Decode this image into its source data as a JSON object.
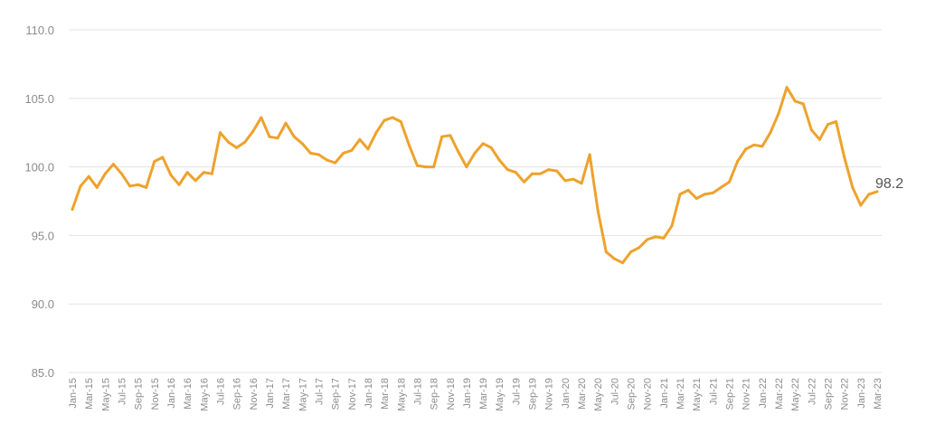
{
  "chart_data": {
    "type": "line",
    "title": "",
    "xlabel": "",
    "ylabel": "",
    "ylim": [
      85,
      110
    ],
    "yticks": [
      "85.0",
      "90.0",
      "95.0",
      "100.0",
      "105.0",
      "110.0"
    ],
    "grid": true,
    "legend": "none",
    "x": [
      "Jan-15",
      "Feb-15",
      "Mar-15",
      "Apr-15",
      "May-15",
      "Jun-15",
      "Jul-15",
      "Aug-15",
      "Sep-15",
      "Oct-15",
      "Nov-15",
      "Dec-15",
      "Jan-16",
      "Feb-16",
      "Mar-16",
      "Apr-16",
      "May-16",
      "Jun-16",
      "Jul-16",
      "Aug-16",
      "Sep-16",
      "Oct-16",
      "Nov-16",
      "Dec-16",
      "Jan-17",
      "Feb-17",
      "Mar-17",
      "Apr-17",
      "May-17",
      "Jun-17",
      "Jul-17",
      "Aug-17",
      "Sep-17",
      "Oct-17",
      "Nov-17",
      "Dec-17",
      "Jan-18",
      "Feb-18",
      "Mar-18",
      "Apr-18",
      "May-18",
      "Jun-18",
      "Jul-18",
      "Aug-18",
      "Sep-18",
      "Oct-18",
      "Nov-18",
      "Dec-18",
      "Jan-19",
      "Feb-19",
      "Mar-19",
      "Apr-19",
      "May-19",
      "Jun-19",
      "Jul-19",
      "Aug-19",
      "Sep-19",
      "Oct-19",
      "Nov-19",
      "Dec-19",
      "Jan-20",
      "Feb-20",
      "Mar-20",
      "Apr-20",
      "May-20",
      "Jun-20",
      "Jul-20",
      "Aug-20",
      "Sep-20",
      "Oct-20",
      "Nov-20",
      "Dec-20",
      "Jan-21",
      "Feb-21",
      "Mar-21",
      "Apr-21",
      "May-21",
      "Jun-21",
      "Jul-21",
      "Aug-21",
      "Sep-21",
      "Oct-21",
      "Nov-21",
      "Dec-21",
      "Jan-22",
      "Feb-22",
      "Mar-22",
      "Apr-22",
      "May-22",
      "Jun-22",
      "Jul-22",
      "Aug-22",
      "Sep-22",
      "Oct-22",
      "Nov-22",
      "Dec-22",
      "Jan-23",
      "Feb-23",
      "Mar-23"
    ],
    "series": [
      {
        "values": [
          96.9,
          98.6,
          99.3,
          98.5,
          99.5,
          100.2,
          99.5,
          98.6,
          98.7,
          98.5,
          100.4,
          100.7,
          99.4,
          98.7,
          99.6,
          99.0,
          99.6,
          99.5,
          102.5,
          101.8,
          101.4,
          101.8,
          102.6,
          103.6,
          102.2,
          102.1,
          103.2,
          102.2,
          101.7,
          101.0,
          100.9,
          100.5,
          100.3,
          101.0,
          101.2,
          102.0,
          101.3,
          102.5,
          103.4,
          103.6,
          103.3,
          101.6,
          100.1,
          100.0,
          100.0,
          102.2,
          102.3,
          101.1,
          100.0,
          101.0,
          101.7,
          101.4,
          100.5,
          99.8,
          99.6,
          98.9,
          99.5,
          99.5,
          99.8,
          99.7,
          99.0,
          99.1,
          98.8,
          100.9,
          96.8,
          93.8,
          93.3,
          93.0,
          93.8,
          94.1,
          94.7,
          94.9,
          94.8,
          95.7,
          98.0,
          98.3,
          97.7,
          98.0,
          98.1,
          98.5,
          98.9,
          100.4,
          101.3,
          101.6,
          101.5,
          102.5,
          103.9,
          105.8,
          104.8,
          104.6,
          102.7,
          102.0,
          103.1,
          103.3,
          100.7,
          98.5,
          97.2,
          98.0,
          98.2
        ],
        "color": "#EEA22C"
      }
    ],
    "xtick_labels": [
      "Jan-15",
      "Mar-15",
      "May-15",
      "Jul-15",
      "Sep-15",
      "Nov-15",
      "Jan-16",
      "Mar-16",
      "May-16",
      "Jul-16",
      "Sep-16",
      "Nov-16",
      "Jan-17",
      "Mar-17",
      "May-17",
      "Jul-17",
      "Sep-17",
      "Nov-17",
      "Jan-18",
      "Mar-18",
      "May-18",
      "Jul-18",
      "Sep-18",
      "Nov-18",
      "Jan-19",
      "Mar-19",
      "May-19",
      "Jul-19",
      "Sep-19",
      "Nov-19",
      "Jan-20",
      "Mar-20",
      "May-20",
      "Jul-20",
      "Sep-20",
      "Nov-20",
      "Jan-21",
      "Mar-21",
      "May-21",
      "Jul-21",
      "Sep-21",
      "Nov-21",
      "Jan-22",
      "Mar-22",
      "May-22",
      "Jul-22",
      "Sep-22",
      "Nov-22",
      "Jan-23",
      "Mar-23"
    ],
    "annotations": [
      {
        "text": "98.2",
        "x": "Mar-23"
      }
    ]
  }
}
